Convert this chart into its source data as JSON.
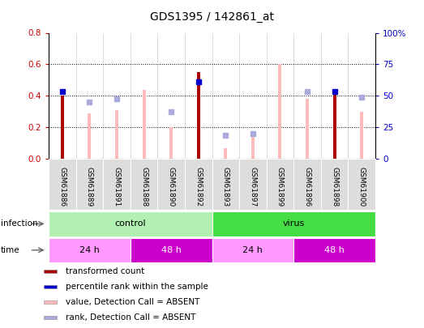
{
  "title": "GDS1395 / 142861_at",
  "samples": [
    "GSM61886",
    "GSM61889",
    "GSM61891",
    "GSM61888",
    "GSM61890",
    "GSM61892",
    "GSM61893",
    "GSM61897",
    "GSM61899",
    "GSM61896",
    "GSM61898",
    "GSM61900"
  ],
  "transformed_count": [
    0.4,
    null,
    null,
    null,
    null,
    0.55,
    null,
    null,
    null,
    null,
    0.41,
    null
  ],
  "percentile_rank": [
    0.43,
    null,
    null,
    null,
    null,
    0.49,
    null,
    null,
    null,
    null,
    0.43,
    null
  ],
  "absent_value": [
    null,
    0.29,
    0.31,
    0.44,
    0.2,
    null,
    0.07,
    0.15,
    0.6,
    0.38,
    null,
    0.3
  ],
  "absent_rank": [
    null,
    0.36,
    0.38,
    null,
    0.3,
    null,
    0.15,
    0.16,
    null,
    0.43,
    null,
    0.39
  ],
  "ylim_left": [
    0,
    0.8
  ],
  "ylim_right": [
    0,
    100
  ],
  "yticks_left": [
    0,
    0.2,
    0.4,
    0.6,
    0.8
  ],
  "yticks_right": [
    0,
    25,
    50,
    75,
    100
  ],
  "infection_groups": [
    {
      "label": "control",
      "start": 0,
      "end": 6,
      "color": "#b2f0b2"
    },
    {
      "label": "virus",
      "start": 6,
      "end": 12,
      "color": "#44dd44"
    }
  ],
  "time_groups": [
    {
      "label": "24 h",
      "start": 0,
      "end": 3,
      "color": "#ff99ff"
    },
    {
      "label": "48 h",
      "start": 3,
      "end": 6,
      "color": "#cc00cc"
    },
    {
      "label": "24 h",
      "start": 6,
      "end": 9,
      "color": "#ff99ff"
    },
    {
      "label": "48 h",
      "start": 9,
      "end": 12,
      "color": "#cc00cc"
    }
  ],
  "bar_color_red": "#aa0000",
  "bar_color_pink": "#ffbbbb",
  "dot_color_blue_dark": "#0000cc",
  "dot_color_blue_light": "#aaaadd",
  "legend_items": [
    {
      "color": "#aa0000",
      "label": "transformed count"
    },
    {
      "color": "#0000cc",
      "label": "percentile rank within the sample"
    },
    {
      "color": "#ffbbbb",
      "label": "value, Detection Call = ABSENT"
    },
    {
      "color": "#aaaadd",
      "label": "rank, Detection Call = ABSENT"
    }
  ],
  "infection_label": "infection",
  "time_label": "time",
  "left_axis_color": "#cc0000",
  "right_axis_color": "#0000cc"
}
